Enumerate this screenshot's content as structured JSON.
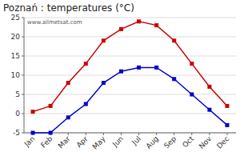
{
  "chart_data": {
    "type": "line",
    "title": "Poznań : temperatures (°C)",
    "categories": [
      "Jan",
      "Feb",
      "Mar",
      "Apr",
      "May",
      "Jun",
      "Jul",
      "Aug",
      "Sep",
      "Oct",
      "Nov",
      "Dec"
    ],
    "series": [
      {
        "color": "#cc0000",
        "marker": "square",
        "line_style": "solid",
        "values": [
          0.5,
          2.0,
          8.0,
          13.0,
          19.0,
          22.0,
          24.0,
          23.0,
          19.0,
          13.0,
          7.0,
          2.0
        ]
      },
      {
        "color": "#0000cc",
        "marker": "square",
        "line_style": "solid",
        "values": [
          -5.0,
          -5.0,
          -1.0,
          2.5,
          8.0,
          11.0,
          12.0,
          12.0,
          9.0,
          5.0,
          1.0,
          -3.0
        ]
      }
    ],
    "ylim": [
      -5,
      25
    ],
    "yticks": [
      -5,
      0,
      5,
      10,
      15,
      20,
      25
    ],
    "grid": true,
    "annotations": [
      "www.allmetsat.com"
    ]
  }
}
